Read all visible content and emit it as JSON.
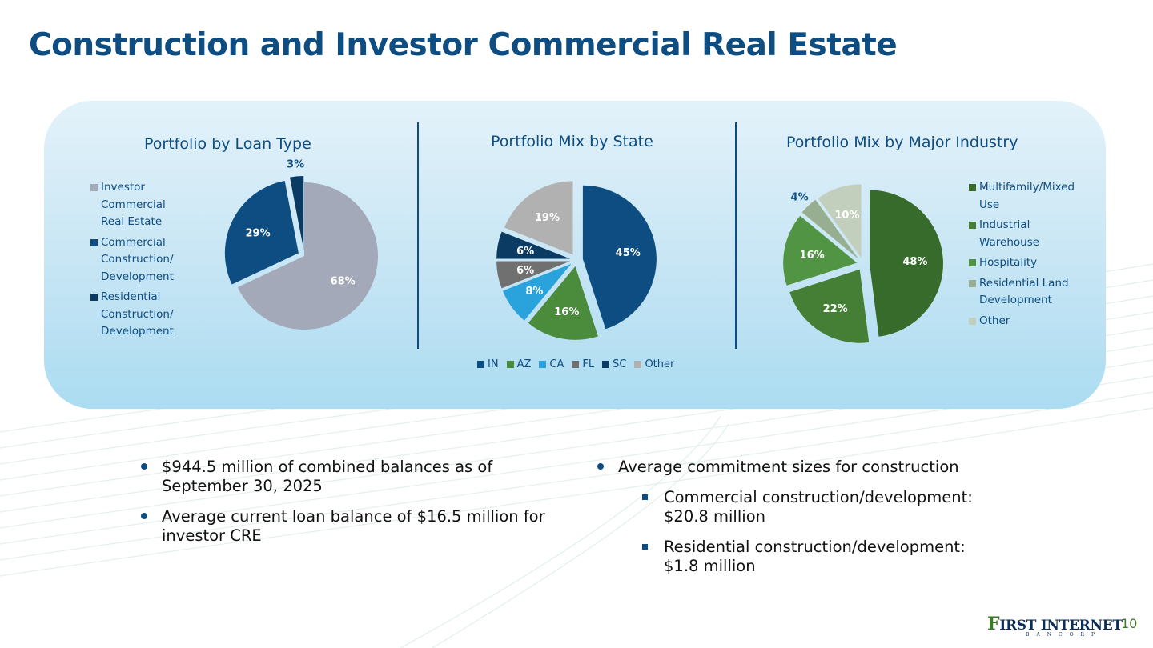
{
  "slide": {
    "title": "Construction and Investor Commercial Real Estate",
    "page_number": "10",
    "logo": {
      "name": "First Internet",
      "first_letter": "F",
      "rest": "IRST INTERNET",
      "sub": "BANCORP"
    }
  },
  "colors": {
    "title": "#0e4d82",
    "accent_green": "#3b7a2a"
  },
  "chart_data": [
    {
      "type": "pie",
      "title": "Portfolio by Loan Type",
      "legend_position": "left",
      "categories": [
        "Investor Commercial Real Estate",
        "Commercial Construction/ Development",
        "Residential Construction/ Development"
      ],
      "values": [
        68,
        29,
        3
      ],
      "labels": [
        "68%",
        "29%",
        "3%"
      ],
      "colors": [
        "#a3a9b8",
        "#0e4d82",
        "#0b3a63"
      ],
      "label_colors": [
        "#ffffff",
        "#ffffff",
        "#0e4d82"
      ],
      "exploded": [
        false,
        true,
        true
      ]
    },
    {
      "type": "pie",
      "title": "Portfolio Mix by State",
      "legend_position": "bottom",
      "categories": [
        "IN",
        "AZ",
        "CA",
        "FL",
        "SC",
        "Other"
      ],
      "values": [
        45,
        16,
        8,
        6,
        6,
        19
      ],
      "labels": [
        "45%",
        "16%",
        "8%",
        "6%",
        "6%",
        "19%"
      ],
      "colors": [
        "#0e4d82",
        "#4a8c3c",
        "#2aa3dc",
        "#707070",
        "#0b3a63",
        "#b1b1b1"
      ],
      "label_colors": [
        "#ffffff",
        "#ffffff",
        "#ffffff",
        "#ffffff",
        "#ffffff",
        "#ffffff"
      ],
      "exploded": [
        true,
        true,
        true,
        true,
        true,
        true
      ]
    },
    {
      "type": "pie",
      "title": "Portfolio Mix by Major Industry",
      "legend_position": "right",
      "categories": [
        "Multifamily/Mixed Use",
        "Industrial Warehouse",
        "Hospitality",
        "Residential Land Development",
        "Other"
      ],
      "values": [
        48,
        22,
        16,
        4,
        10
      ],
      "labels": [
        "48%",
        "22%",
        "16%",
        "4%",
        "10%"
      ],
      "colors": [
        "#376b2c",
        "#447f35",
        "#519443",
        "#97ae90",
        "#c2cfbc"
      ],
      "label_colors": [
        "#ffffff",
        "#ffffff",
        "#ffffff",
        "#0e4d82",
        "#ffffff"
      ],
      "exploded": [
        true,
        true,
        true,
        true,
        true
      ]
    }
  ],
  "bullets_left": [
    "$944.5 million of combined balances as of September 30, 2025",
    "Average current loan balance of $16.5 million for investor CRE"
  ],
  "bullets_right": {
    "main": "Average commitment sizes for construction",
    "sub": [
      "Commercial construction/development: $20.8 million",
      "Residential construction/development: $1.8 million"
    ]
  }
}
